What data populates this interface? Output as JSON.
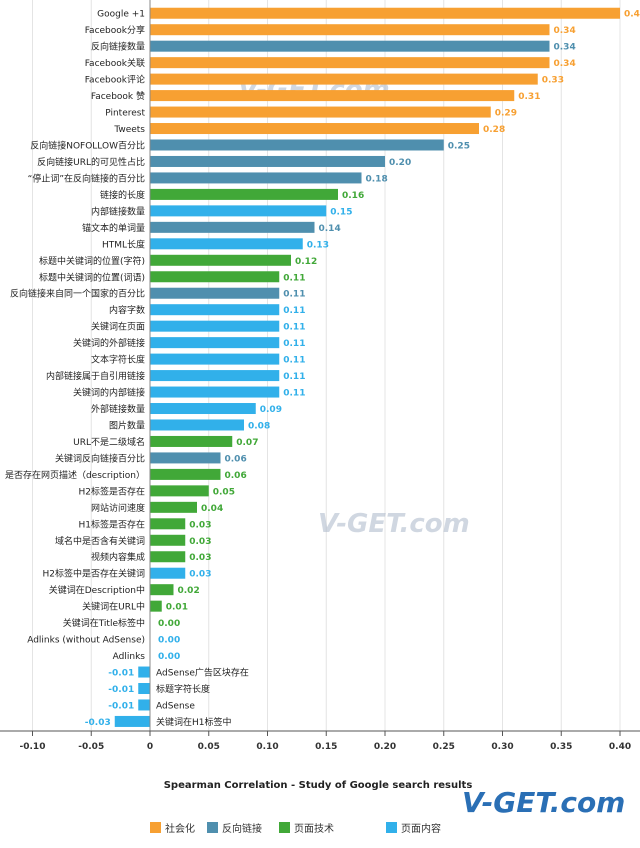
{
  "watermark_text": "V-GET.com",
  "colors": {
    "social": "#f7a032",
    "backlink": "#4f8fae",
    "technical": "#41a838",
    "content": "#31b0ea",
    "grid": "#e4e4e4",
    "axis": "#555555",
    "watermark": "#aab6c8"
  },
  "chart_data": {
    "type": "bar",
    "orientation": "horizontal",
    "title": "Spearman Correlation - Study of Google search results",
    "xlim": [
      -0.1,
      0.4
    ],
    "xticks": [
      "-0.10",
      "-0.05",
      "0",
      "0.05",
      "0.10",
      "0.15",
      "0.20",
      "0.25",
      "0.30",
      "0.35",
      "0.40"
    ],
    "xtick_values": [
      -0.1,
      -0.05,
      0,
      0.05,
      0.1,
      0.15,
      0.2,
      0.25,
      0.3,
      0.35,
      0.4
    ],
    "grid": true,
    "legend_position": "bottom",
    "legend": [
      {
        "key": "social",
        "label": "社会化"
      },
      {
        "key": "backlink",
        "label": "反向链接"
      },
      {
        "key": "technical",
        "label": "页面技术"
      },
      {
        "key": "content",
        "label": "页面内容"
      }
    ],
    "bars": [
      {
        "category": "Google +1",
        "value": 0.4,
        "label": "0.4",
        "group": "social"
      },
      {
        "category": "Facebook分享",
        "value": 0.34,
        "label": "0.34",
        "group": "social"
      },
      {
        "category": "反向链接数量",
        "value": 0.34,
        "label": "0.34",
        "group": "backlink"
      },
      {
        "category": "Facebook关联",
        "value": 0.34,
        "label": "0.34",
        "group": "social"
      },
      {
        "category": "Facebook评论",
        "value": 0.33,
        "label": "0.33",
        "group": "social"
      },
      {
        "category": "Facebook 赞",
        "value": 0.31,
        "label": "0.31",
        "group": "social"
      },
      {
        "category": "Pinterest",
        "value": 0.29,
        "label": "0.29",
        "group": "social"
      },
      {
        "category": "Tweets",
        "value": 0.28,
        "label": "0.28",
        "group": "social"
      },
      {
        "category": "反向链接NOFOLLOW百分比",
        "value": 0.25,
        "label": "0.25",
        "group": "backlink"
      },
      {
        "category": "反向链接URL的可见性占比",
        "value": 0.2,
        "label": "0.20",
        "group": "backlink"
      },
      {
        "category": "“停止词”在反向链接的百分比",
        "value": 0.18,
        "label": "0.18",
        "group": "backlink"
      },
      {
        "category": "链接的长度",
        "value": 0.16,
        "label": "0.16",
        "group": "technical"
      },
      {
        "category": "内部链接数量",
        "value": 0.15,
        "label": "0.15",
        "group": "content"
      },
      {
        "category": "锚文本的单词量",
        "value": 0.14,
        "label": "0.14",
        "group": "backlink"
      },
      {
        "category": "HTML长度",
        "value": 0.13,
        "label": "0.13",
        "group": "content"
      },
      {
        "category": "标题中关键词的位置(字符)",
        "value": 0.12,
        "label": "0.12",
        "group": "technical"
      },
      {
        "category": "标题中关键词的位置(词语)",
        "value": 0.11,
        "label": "0.11",
        "group": "technical"
      },
      {
        "category": "反向链接来自同一个国家的百分比",
        "value": 0.11,
        "label": "0.11",
        "group": "backlink"
      },
      {
        "category": "内容字数",
        "value": 0.11,
        "label": "0.11",
        "group": "content"
      },
      {
        "category": "关键词在页面",
        "value": 0.11,
        "label": "0.11",
        "group": "content"
      },
      {
        "category": "关键词的外部链接",
        "value": 0.11,
        "label": "0.11",
        "group": "content"
      },
      {
        "category": "文本字符长度",
        "value": 0.11,
        "label": "0.11",
        "group": "content"
      },
      {
        "category": "内部链接属于自引用链接",
        "value": 0.11,
        "label": "0.11",
        "group": "content"
      },
      {
        "category": "关键词的内部链接",
        "value": 0.11,
        "label": "0.11",
        "group": "content"
      },
      {
        "category": "外部链接数量",
        "value": 0.09,
        "label": "0.09",
        "group": "content"
      },
      {
        "category": "图片数量",
        "value": 0.08,
        "label": "0.08",
        "group": "content"
      },
      {
        "category": "URL不是二级域名",
        "value": 0.07,
        "label": "0.07",
        "group": "technical"
      },
      {
        "category": "关键词反向链接百分比",
        "value": 0.06,
        "label": "0.06",
        "group": "backlink"
      },
      {
        "category": "是否存在网页描述（description）",
        "value": 0.06,
        "label": "0.06",
        "group": "technical"
      },
      {
        "category": "H2标签是否存在",
        "value": 0.05,
        "label": "0.05",
        "group": "technical"
      },
      {
        "category": "网站访问速度",
        "value": 0.04,
        "label": "0.04",
        "group": "technical"
      },
      {
        "category": "H1标签是否存在",
        "value": 0.03,
        "label": "0.03",
        "group": "technical"
      },
      {
        "category": "域名中是否含有关键词",
        "value": 0.03,
        "label": "0.03",
        "group": "technical"
      },
      {
        "category": "视频内容集成",
        "value": 0.03,
        "label": "0.03",
        "group": "technical"
      },
      {
        "category": "H2标签中是否存在关键词",
        "value": 0.03,
        "label": "0.03",
        "group": "content"
      },
      {
        "category": "关键词在Description中",
        "value": 0.02,
        "label": "0.02",
        "group": "technical"
      },
      {
        "category": "关键词在URL中",
        "value": 0.01,
        "label": "0.01",
        "group": "technical"
      },
      {
        "category": "关键词在Title标签中",
        "value": 0.0,
        "label": "0.00",
        "group": "technical"
      },
      {
        "category": "Adlinks (without AdSense)",
        "value": 0.0,
        "label": "0.00",
        "group": "content"
      },
      {
        "category": "Adlinks",
        "value": 0.0,
        "label": "0.00",
        "group": "content"
      },
      {
        "category": "AdSense广告区块存在",
        "value": -0.01,
        "label": "-0.01",
        "group": "content"
      },
      {
        "category": "标题字符长度",
        "value": -0.01,
        "label": "-0.01",
        "group": "content"
      },
      {
        "category": "AdSense",
        "value": -0.01,
        "label": "-0.01",
        "group": "content"
      },
      {
        "category": "关键词在H1标签中",
        "value": -0.03,
        "label": "-0.03",
        "group": "content"
      }
    ]
  }
}
